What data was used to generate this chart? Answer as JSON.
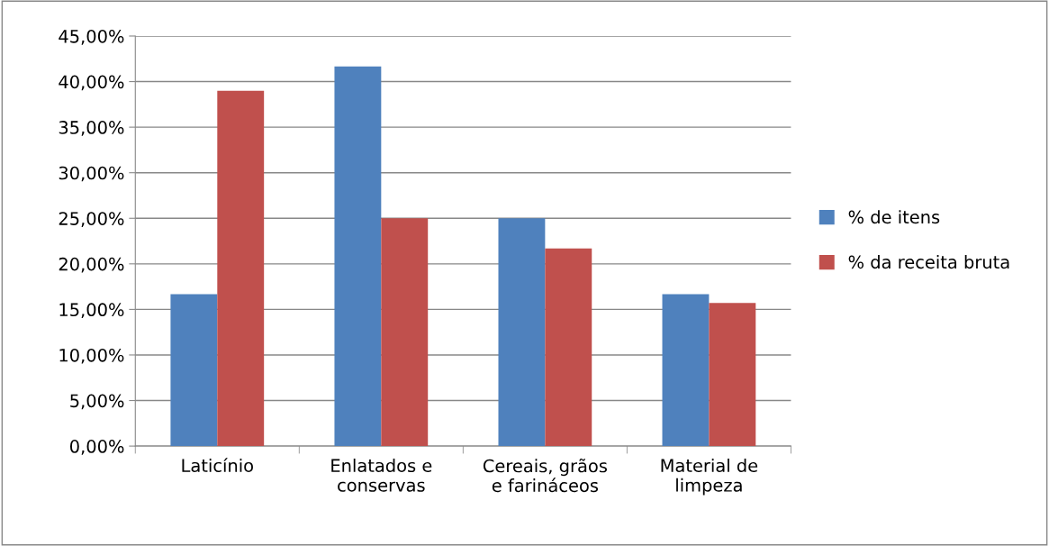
{
  "chart_data": {
    "type": "bar",
    "categories": [
      "Laticínio",
      "Enlatados e\nconservas",
      "Cereais, grãos\ne farináceos",
      "Material de\nlimpeza"
    ],
    "series": [
      {
        "name": "% de itens",
        "color": "#4f81bd",
        "values": [
          16.67,
          41.67,
          25.0,
          16.67
        ]
      },
      {
        "name": "% da receita bruta",
        "color": "#c0504d",
        "values": [
          39.0,
          25.0,
          21.7,
          15.7
        ]
      }
    ],
    "ylim": [
      0,
      45
    ],
    "yticks": [
      {
        "value": 0,
        "label": "0,00%"
      },
      {
        "value": 5,
        "label": "5,00%"
      },
      {
        "value": 10,
        "label": "10,00%"
      },
      {
        "value": 15,
        "label": "15,00%"
      },
      {
        "value": 20,
        "label": "20,00%"
      },
      {
        "value": 25,
        "label": "25,00%"
      },
      {
        "value": 30,
        "label": "30,00%"
      },
      {
        "value": 35,
        "label": "35,00%"
      },
      {
        "value": 40,
        "label": "40,00%"
      },
      {
        "value": 45,
        "label": "45,00%"
      }
    ],
    "grid": "y",
    "legend": "right"
  }
}
